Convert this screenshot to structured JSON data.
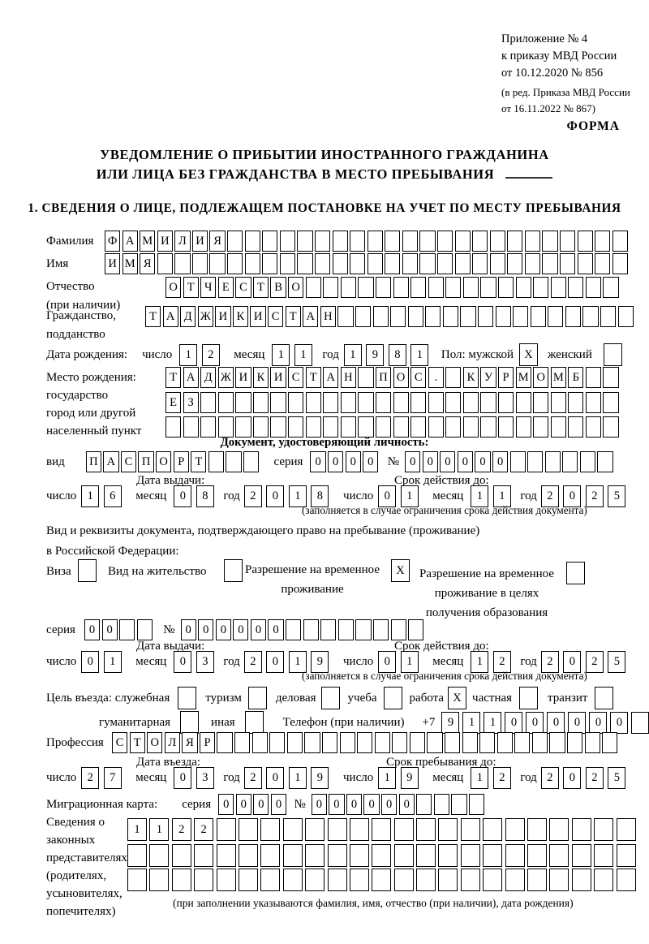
{
  "header": {
    "line1": "Приложение № 4",
    "line2": "к приказу МВД России",
    "line3": "от 10.12.2020 № 856",
    "line4": "(в ред. Приказа МВД России",
    "line5": "от 16.11.2022 № 867)",
    "form_label": "ФОРМА"
  },
  "title": {
    "line1": "УВЕДОМЛЕНИЕ О ПРИБЫТИИ ИНОСТРАННОГО ГРАЖДАНИНА",
    "line2": "ИЛИ ЛИЦА БЕЗ ГРАЖДАНСТВА В МЕСТО ПРЕБЫВАНИЯ"
  },
  "section1_heading": "1. СВЕДЕНИЯ О ЛИЦЕ, ПОДЛЕЖАЩЕМ ПОСТАНОВКЕ НА УЧЕТ ПО МЕСТУ ПРЕБЫВАНИЯ",
  "surname": {
    "label": "Фамилия",
    "cells": {
      "v": "ФАМИЛИЯ",
      "n": 30
    }
  },
  "firstname": {
    "label": "Имя",
    "cells": {
      "v": "ИМЯ",
      "n": 30
    }
  },
  "patronymic": {
    "label1": "Отчество",
    "label2": "(при наличии)",
    "cells": {
      "v": "ОТЧЕСТВО",
      "n": 26
    }
  },
  "citizenship": {
    "label1": "Гражданство,",
    "label2": "подданство",
    "cells": {
      "v": "ТАДЖИКИСТАН",
      "n": 28
    }
  },
  "birth_date": {
    "label": "Дата рождения:",
    "day_label": "число",
    "day": {
      "v": "12",
      "n": 2
    },
    "month_label": "месяц",
    "month": {
      "v": "11",
      "n": 2
    },
    "year_label": "год",
    "year": {
      "v": "1981",
      "n": 4
    },
    "sex_label": "Пол: мужской",
    "male_box": {
      "v": "X",
      "n": 1
    },
    "female_label": "женский",
    "female_box": {
      "v": "",
      "n": 1
    }
  },
  "birth_place": {
    "label1": "Место рождения:",
    "label2": "государство",
    "label3": "город или другой",
    "label4": "населенный пункт",
    "row1": {
      "v": "ТАДЖИКИСТАН ПОС. КУРМОМБ",
      "n": 26
    },
    "row2": {
      "v": "ЕЗ",
      "n": 26
    },
    "row3": {
      "v": "",
      "n": 26
    }
  },
  "identity_doc": {
    "heading": "Документ, удостоверяющий личность:",
    "kind_label": "вид",
    "kind": {
      "v": "ПАСПОРТ",
      "n": 10
    },
    "series_label": "серия",
    "series": {
      "v": "0000",
      "n": 4
    },
    "number_label": "№",
    "number": {
      "v": "000000",
      "n": 12
    },
    "issue_heading": "Дата выдачи:",
    "issue": {
      "day_label": "число",
      "day": {
        "v": "16",
        "n": 2
      },
      "month_label": "месяц",
      "month": {
        "v": "08",
        "n": 2
      },
      "year_label": "год",
      "year": {
        "v": "2018",
        "n": 4
      }
    },
    "expiry_heading": "Срок действия до:",
    "expiry": {
      "day_label": "число",
      "day": {
        "v": "01",
        "n": 2
      },
      "month_label": "месяц",
      "month": {
        "v": "11",
        "n": 2
      },
      "year_label": "год",
      "year": {
        "v": "2025",
        "n": 4
      }
    },
    "note": "(заполняется в случае ограничения срока действия документа)"
  },
  "residence_doc": {
    "intro1": "Вид и реквизиты документа, подтверждающего право на пребывание (проживание)",
    "intro2": "в Российской Федерации:",
    "visa_label": "Виза",
    "visa_box": {
      "v": "",
      "n": 1
    },
    "residence_permit_label": "Вид на жительство",
    "residence_permit_box": {
      "v": "",
      "n": 1
    },
    "temp_permit_label": "Разрешение на временное\nпроживание",
    "temp_permit_box": {
      "v": "X",
      "n": 1
    },
    "edu_permit_label": "Разрешение на временное\nпроживание в целях\nполучения образования",
    "edu_permit_box": {
      "v": "",
      "n": 1
    },
    "series_label": "серия",
    "series": {
      "v": "00",
      "n": 4
    },
    "number_label": "№",
    "number": {
      "v": "000000",
      "n": 14
    },
    "issue_heading": "Дата выдачи:",
    "issue": {
      "day_label": "число",
      "day": {
        "v": "01",
        "n": 2
      },
      "month_label": "месяц",
      "month": {
        "v": "03",
        "n": 2
      },
      "year_label": "год",
      "year": {
        "v": "2019",
        "n": 4
      }
    },
    "expiry_heading": "Срок действия до:",
    "expiry": {
      "day_label": "число",
      "day": {
        "v": "01",
        "n": 2
      },
      "month_label": "месяц",
      "month": {
        "v": "12",
        "n": 2
      },
      "year_label": "год",
      "year": {
        "v": "2025",
        "n": 4
      }
    },
    "note": "(заполняется в случае ограничения срока действия документа)"
  },
  "visit": {
    "purpose_label": "Цель въезда: служебная",
    "official_box": {
      "v": "",
      "n": 1
    },
    "tourism_label": "туризм",
    "tourism_box": {
      "v": "",
      "n": 1
    },
    "business_label": "деловая",
    "business_box": {
      "v": "",
      "n": 1
    },
    "study_label": "учеба",
    "study_box": {
      "v": "",
      "n": 1
    },
    "work_label": "работа",
    "work_box": {
      "v": "X",
      "n": 1
    },
    "private_label": "частная",
    "private_box": {
      "v": "",
      "n": 1
    },
    "transit_label": "транзит",
    "transit_box": {
      "v": "",
      "n": 1
    },
    "humanitarian_label": "гуманитарная",
    "humanitarian_box": {
      "v": "",
      "n": 1
    },
    "other_label": "иная",
    "other_box": {
      "v": "",
      "n": 1
    },
    "phone_label": "Телефон (при наличии)",
    "phone_prefix": "+7",
    "phone": {
      "v": "911000000",
      "n": 10
    }
  },
  "profession": {
    "label": "Профессия",
    "cells": {
      "v": "СТОЛЯР",
      "n": 29
    }
  },
  "entry_heading": "Дата въезда:",
  "entry": {
    "day_label": "число",
    "day": {
      "v": "27",
      "n": 2
    },
    "month_label": "месяц",
    "month": {
      "v": "03",
      "n": 2
    },
    "year_label": "год",
    "year": {
      "v": "2019",
      "n": 4
    }
  },
  "stay_heading": "Срок пребывания до:",
  "stay": {
    "day_label": "число",
    "day": {
      "v": "19",
      "n": 2
    },
    "month_label": "месяц",
    "month": {
      "v": "12",
      "n": 2
    },
    "year_label": "год",
    "year": {
      "v": "2025",
      "n": 4
    }
  },
  "migration_card": {
    "label": "Миграционная карта:",
    "series_label": "серия",
    "series": {
      "v": "0000",
      "n": 4
    },
    "number_label": "№",
    "number": {
      "v": "000000",
      "n": 10
    }
  },
  "representatives": {
    "label1": "Сведения о",
    "label2": "законных",
    "label3": "представителях",
    "label4": "(родителях,",
    "label5": "усыновителях,",
    "label6": "попечителях)",
    "row1": {
      "v": "1122",
      "n": 23
    },
    "row2": {
      "v": "",
      "n": 23
    },
    "row3": {
      "v": "",
      "n": 23
    },
    "note": "(при заполнении указываются фамилия, имя, отчество (при наличии), дата рождения)"
  }
}
